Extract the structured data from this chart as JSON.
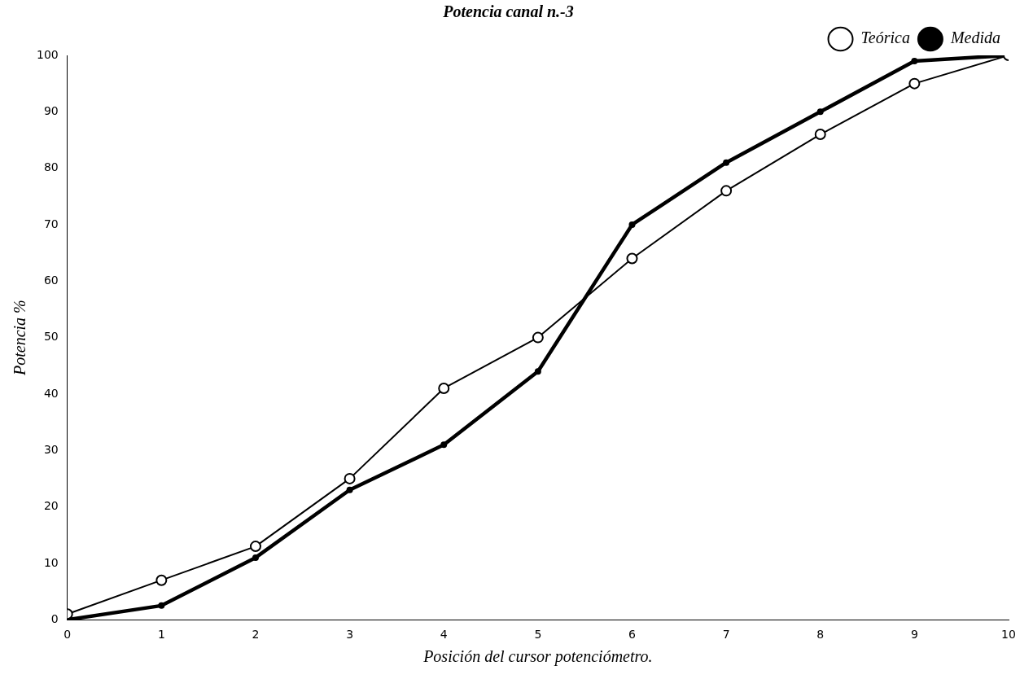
{
  "chart_data": {
    "type": "line",
    "title": "Potencia canal n.-3",
    "xlabel": "Posición del cursor potenciómetro.",
    "ylabel": "Potencia %",
    "x": [
      0,
      1,
      2,
      3,
      4,
      5,
      6,
      7,
      8,
      9,
      10
    ],
    "series": [
      {
        "name": "Teórica",
        "color": "#000000",
        "values": [
          1,
          7,
          13,
          25,
          41,
          50,
          64,
          76,
          86,
          95,
          100
        ]
      },
      {
        "name": "Medida",
        "color": "#000000",
        "values": [
          0,
          2.5,
          11,
          23,
          31,
          44,
          70,
          81,
          90,
          99,
          100
        ]
      }
    ],
    "xlim": [
      0,
      10
    ],
    "xticks": [
      0,
      1,
      2,
      3,
      4,
      5,
      6,
      7,
      8,
      9,
      10
    ],
    "ylim": [
      0,
      100
    ],
    "yticks": [
      0,
      10,
      20,
      30,
      40,
      50,
      60,
      70,
      80,
      90,
      100
    ],
    "grid": false,
    "legend": "top right",
    "marker": "circle",
    "line_style": "solid"
  }
}
